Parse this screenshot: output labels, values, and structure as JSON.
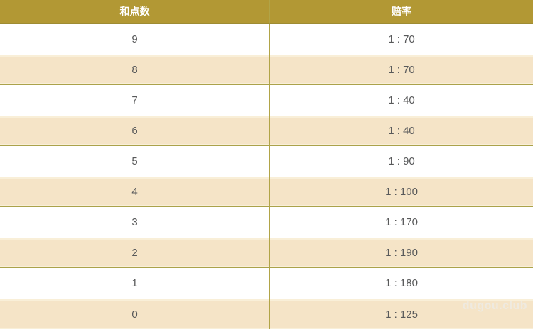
{
  "table": {
    "columns": [
      {
        "label": "和点数"
      },
      {
        "label": "赔率"
      }
    ],
    "rows": [
      {
        "point": "9",
        "odds": "1 : 70"
      },
      {
        "point": "8",
        "odds": "1 : 70"
      },
      {
        "point": "7",
        "odds": "1 : 40"
      },
      {
        "point": "6",
        "odds": "1 : 40"
      },
      {
        "point": "5",
        "odds": "1 : 90"
      },
      {
        "point": "4",
        "odds": "1 : 100"
      },
      {
        "point": "3",
        "odds": "1 : 170"
      },
      {
        "point": "2",
        "odds": "1 : 190"
      },
      {
        "point": "1",
        "odds": "1 : 180"
      },
      {
        "point": "0",
        "odds": "1 : 125"
      }
    ]
  },
  "watermark": "dugou.club",
  "colors": {
    "header_bg": "#b29834",
    "header_text": "#ffffff",
    "row_bg": "#ffffff",
    "row_alt_bg": "#f5e4c7",
    "border_gold": "#aba24a",
    "cell_text": "#58595a"
  }
}
